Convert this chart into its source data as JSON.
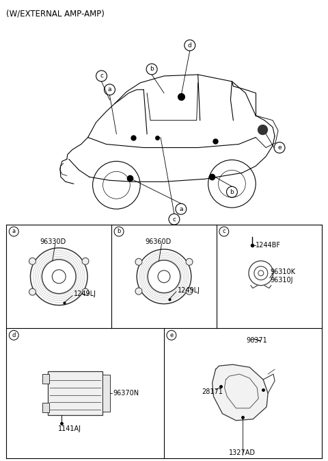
{
  "title": "(W/EXTERNAL AMP-AMP)",
  "bg_color": "#ffffff",
  "border_color": "#000000",
  "text_color": "#000000",
  "fig_width": 4.8,
  "fig_height": 6.73,
  "sections": {
    "a": {
      "label": "a",
      "part_main": "96330D",
      "part_sub": "1249LJ"
    },
    "b": {
      "label": "b",
      "part_main": "96360D",
      "part_sub": "1249LJ"
    },
    "c": {
      "label": "c",
      "part_main": "1244BF",
      "part_sub1": "96310J",
      "part_sub2": "96310K"
    },
    "d": {
      "label": "d",
      "part_main": "96370N",
      "part_sub": "1141AJ"
    },
    "e": {
      "label": "e",
      "part_main": "96371",
      "part_sub1": "28171",
      "part_sub2": "1327AD"
    }
  }
}
